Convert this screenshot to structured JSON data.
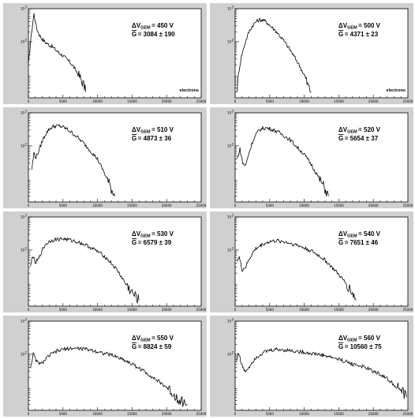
{
  "chart_data": [
    {
      "type": "line",
      "y_scale": "log",
      "xlim": [
        0,
        25000
      ],
      "ylim": [
        2,
        1000
      ],
      "xticks": [
        "0",
        "5000",
        "10000",
        "15000",
        "20000",
        "25000"
      ],
      "yticks": [
        "10",
        "10"
      ],
      "ytick_exponents": [
        "2",
        "3"
      ],
      "dv_label": "ΔV",
      "dv_sub": "GEM",
      "dv_value": "= 450 V",
      "g_label": "G",
      "g_value": "= 3084 ± 190",
      "xlabel": "electrons",
      "x": [
        0,
        400,
        800,
        1200,
        1600,
        2000,
        2500,
        3000,
        3500,
        4000,
        4500,
        5000,
        5500,
        6000,
        6500,
        7000,
        7500,
        8000,
        8300
      ],
      "y": [
        20,
        150,
        700,
        250,
        160,
        120,
        95,
        80,
        70,
        55,
        45,
        38,
        30,
        24,
        18,
        12,
        8,
        5,
        3
      ]
    },
    {
      "type": "line",
      "y_scale": "log",
      "xlim": [
        0,
        25000
      ],
      "ylim": [
        2,
        1000
      ],
      "xticks": [
        "0",
        "5000",
        "10000",
        "15000",
        "20000",
        "25000"
      ],
      "yticks": [
        "10",
        "10"
      ],
      "ytick_exponents": [
        "2",
        "3"
      ],
      "dv_label": "ΔV",
      "dv_sub": "GEM",
      "dv_value": "= 500 V",
      "g_label": "G",
      "g_value": "= 4371 ± 23",
      "xlabel": "electrons",
      "x": [
        300,
        600,
        900,
        1200,
        1500,
        2000,
        2500,
        3000,
        3500,
        4000,
        4500,
        5000,
        6000,
        7000,
        8000,
        9000,
        10000,
        10500,
        11000
      ],
      "y": [
        4,
        15,
        35,
        60,
        100,
        200,
        300,
        400,
        460,
        450,
        400,
        320,
        200,
        110,
        55,
        25,
        10,
        5,
        3
      ]
    },
    {
      "type": "line",
      "y_scale": "log",
      "xlim": [
        0,
        25000
      ],
      "ylim": [
        2,
        1000
      ],
      "xticks": [
        "0",
        "5000",
        "10000",
        "15000",
        "20000",
        "25000"
      ],
      "yticks": [
        "10",
        "10"
      ],
      "ytick_exponents": [
        "2",
        "3"
      ],
      "dv_label": "ΔV",
      "dv_sub": "GEM",
      "dv_value": "= 510 V",
      "g_label": "G",
      "g_value": "= 4873 ± 36",
      "x": [
        500,
        800,
        1100,
        1500,
        2000,
        2500,
        3000,
        3500,
        4000,
        4500,
        5000,
        5500,
        6000,
        7000,
        8000,
        9000,
        10000,
        11000,
        12000,
        12500
      ],
      "y": [
        20,
        60,
        45,
        70,
        140,
        230,
        320,
        380,
        400,
        400,
        370,
        330,
        280,
        190,
        120,
        70,
        40,
        15,
        5,
        3
      ]
    },
    {
      "type": "line",
      "y_scale": "log",
      "xlim": [
        0,
        25000
      ],
      "ylim": [
        2,
        1000
      ],
      "xticks": [
        "0",
        "5000",
        "10000",
        "15000",
        "20000",
        "25000"
      ],
      "yticks": [
        "10",
        "10"
      ],
      "ytick_exponents": [
        "2",
        "3"
      ],
      "dv_label": "ΔV",
      "dv_sub": "GEM",
      "dv_value": "= 520 V",
      "g_label": "G",
      "g_value": "= 5654 ± 37",
      "x": [
        300,
        700,
        1100,
        1500,
        2000,
        2500,
        3000,
        3500,
        4000,
        4500,
        5000,
        6000,
        7000,
        8000,
        9000,
        10000,
        11000,
        12000,
        13000,
        13500
      ],
      "y": [
        40,
        80,
        30,
        25,
        60,
        130,
        220,
        300,
        340,
        350,
        330,
        280,
        210,
        150,
        90,
        55,
        28,
        12,
        5,
        3
      ]
    },
    {
      "type": "line",
      "y_scale": "log",
      "xlim": [
        0,
        25000
      ],
      "ylim": [
        2,
        1000
      ],
      "xticks": [
        "0",
        "5000",
        "10000",
        "15000",
        "20000",
        "25000"
      ],
      "yticks": [
        "10",
        "10"
      ],
      "ytick_exponents": [
        "2",
        "3"
      ],
      "dv_label": "ΔV",
      "dv_sub": "GEM",
      "dv_value": "= 530 V",
      "g_label": "G",
      "g_value": "= 6579 ± 39",
      "x": [
        300,
        600,
        1000,
        1500,
        2000,
        2500,
        3000,
        3500,
        4000,
        5000,
        6000,
        7000,
        8000,
        9000,
        10000,
        11000,
        12000,
        13000,
        14000,
        15000,
        16000
      ],
      "y": [
        30,
        70,
        40,
        55,
        100,
        150,
        180,
        200,
        210,
        220,
        200,
        180,
        150,
        120,
        90,
        65,
        40,
        22,
        10,
        5,
        3
      ]
    },
    {
      "type": "line",
      "y_scale": "log",
      "xlim": [
        0,
        25000
      ],
      "ylim": [
        2,
        1000
      ],
      "xticks": [
        "0",
        "5000",
        "10000",
        "15000",
        "20000",
        "25000"
      ],
      "yticks": [
        "10",
        "10"
      ],
      "ytick_exponents": [
        "2",
        "3"
      ],
      "dv_label": "ΔV",
      "dv_sub": "GEM",
      "dv_value": "= 540 V",
      "g_label": "G",
      "g_value": "= 7651 ± 46",
      "x": [
        300,
        600,
        1000,
        1500,
        2000,
        2500,
        3000,
        4000,
        5000,
        6000,
        7000,
        8000,
        9000,
        10000,
        11000,
        12000,
        13000,
        14000,
        15000,
        16000,
        17000,
        17500
      ],
      "y": [
        50,
        60,
        25,
        30,
        50,
        80,
        110,
        150,
        180,
        190,
        180,
        160,
        140,
        115,
        95,
        70,
        50,
        30,
        18,
        10,
        5,
        3
      ]
    },
    {
      "type": "line",
      "y_scale": "log",
      "xlim": [
        0,
        25000
      ],
      "ylim": [
        2,
        1000
      ],
      "xticks": [
        "0",
        "5000",
        "10000",
        "15000",
        "20000",
        "25000"
      ],
      "yticks": [
        "10",
        "10"
      ],
      "ytick_exponents": [
        "2",
        "3"
      ],
      "dv_label": "ΔV",
      "dv_sub": "GEM",
      "dv_value": "= 550 V",
      "g_label": "G",
      "g_value": "= 8824 ± 59",
      "x": [
        300,
        700,
        1200,
        1800,
        2500,
        3000,
        4000,
        5000,
        6000,
        7000,
        8000,
        9000,
        10000,
        11000,
        12000,
        13000,
        14000,
        15000,
        16000,
        17000,
        18000,
        19000,
        20000,
        21000,
        22000,
        23000
      ],
      "y": [
        40,
        100,
        60,
        50,
        70,
        90,
        120,
        140,
        150,
        150,
        145,
        135,
        120,
        105,
        95,
        80,
        65,
        50,
        38,
        28,
        20,
        14,
        10,
        6,
        4,
        3
      ]
    },
    {
      "type": "line",
      "y_scale": "log",
      "xlim": [
        0,
        25000
      ],
      "ylim": [
        2,
        1000
      ],
      "xticks": [
        "0",
        "5000",
        "10000",
        "15000",
        "20000",
        "25000"
      ],
      "yticks": [
        "10",
        "10"
      ],
      "ytick_exponents": [
        "2",
        "3"
      ],
      "dv_label": "ΔV",
      "dv_sub": "GEM",
      "dv_value": "= 560 V",
      "g_label": "G",
      "g_value": "= 10560 ± 75",
      "x": [
        200,
        500,
        900,
        1400,
        2000,
        2500,
        3000,
        4000,
        5000,
        6000,
        7000,
        8000,
        9000,
        10000,
        11000,
        12000,
        13000,
        14000,
        15000,
        16000,
        17000,
        18000,
        19000,
        20000,
        21000,
        22000,
        23000,
        24000,
        24800
      ],
      "y": [
        60,
        120,
        50,
        30,
        40,
        60,
        80,
        110,
        130,
        140,
        135,
        130,
        120,
        115,
        105,
        100,
        90,
        80,
        70,
        60,
        50,
        45,
        38,
        30,
        25,
        18,
        12,
        8,
        5
      ]
    }
  ]
}
